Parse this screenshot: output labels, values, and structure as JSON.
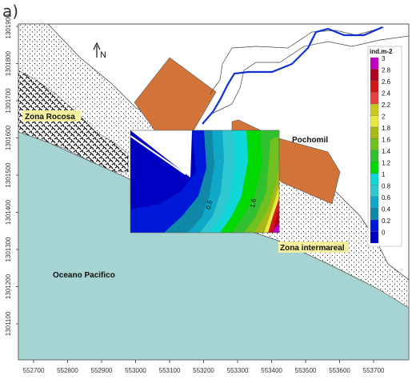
{
  "panel_label": "a)",
  "north_label": "N",
  "labels": {
    "zona_rocosa": "Zona Rocosa",
    "pochomil": "Pochomil",
    "zona_intermareal": "Zona intermareal",
    "oceano": "Oceano Pacifico"
  },
  "contour_labels": [
    "0.6",
    "1.6"
  ],
  "legend": {
    "title": "ind.m-2",
    "levels": [
      "3",
      "2.8",
      "2.6",
      "2.4",
      "2.2",
      "2",
      "1.8",
      "1.6",
      "1.4",
      "1.2",
      "1",
      "0.8",
      "0.6",
      "0.4",
      "0.2",
      "0"
    ],
    "colors": [
      "#c000c0",
      "#b00020",
      "#d01818",
      "#e84040",
      "#c8c820",
      "#e8e840",
      "#a8b818",
      "#70c020",
      "#30c030",
      "#00d800",
      "#10d8d8",
      "#30c8d0",
      "#10a8c8",
      "#1088a8",
      "#0018d8",
      "#0000c0"
    ]
  },
  "x_ticks": [
    "552700",
    "552800",
    "552900",
    "553000",
    "553100",
    "553200",
    "553300",
    "553400",
    "553500",
    "553600",
    "553700"
  ],
  "y_ticks": [
    "1301900",
    "1301800",
    "1301700",
    "1301600",
    "1301500",
    "1301400",
    "1301300",
    "1301200",
    "1301100"
  ],
  "colors": {
    "ocean": "#a6d4d2",
    "buildings": "#d2743a",
    "river": "#1030d0",
    "label_highlight": "#f6f1a0"
  }
}
